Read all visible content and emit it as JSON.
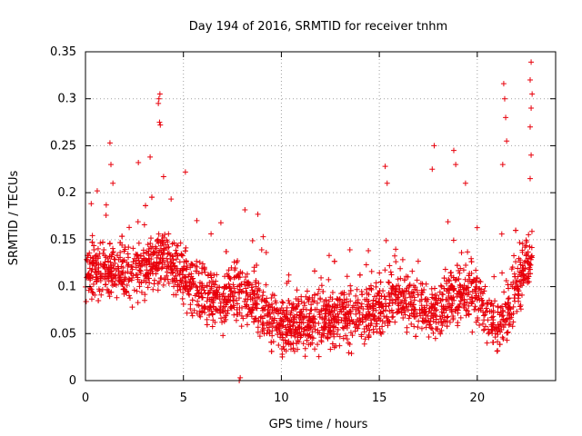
{
  "chart_data": {
    "type": "scatter",
    "title": "Day 194 of 2016, SRMTID for receiver tnhm",
    "xlabel": "GPS time / hours",
    "ylabel": "SRMTID / TECUs",
    "xlim": [
      0,
      24
    ],
    "ylim": [
      0,
      0.35
    ],
    "xticks": [
      0,
      5,
      10,
      15,
      20
    ],
    "xtick_labels": [
      "0",
      "5",
      "10",
      "15",
      "20"
    ],
    "yticks": [
      0,
      0.05,
      0.1,
      0.15,
      0.2,
      0.25,
      0.3,
      0.35
    ],
    "ytick_labels": [
      "0",
      "0.05",
      "0.1",
      "0.15",
      "0.2",
      "0.25",
      "0.3",
      "0.35"
    ],
    "grid": true,
    "marker": "+",
    "series": [
      {
        "name": "SRMTID",
        "color": "#e8000b",
        "profile": [
          [
            0.0,
            0.115
          ],
          [
            1.0,
            0.118
          ],
          [
            2.0,
            0.115
          ],
          [
            3.0,
            0.12
          ],
          [
            4.0,
            0.135
          ],
          [
            5.0,
            0.112
          ],
          [
            6.0,
            0.09
          ],
          [
            7.0,
            0.085
          ],
          [
            8.0,
            0.098
          ],
          [
            9.0,
            0.075
          ],
          [
            10.0,
            0.06
          ],
          [
            11.0,
            0.062
          ],
          [
            12.0,
            0.06
          ],
          [
            13.0,
            0.068
          ],
          [
            14.0,
            0.07
          ],
          [
            15.0,
            0.078
          ],
          [
            16.0,
            0.088
          ],
          [
            17.0,
            0.078
          ],
          [
            18.0,
            0.075
          ],
          [
            19.0,
            0.095
          ],
          [
            20.0,
            0.09
          ],
          [
            21.0,
            0.055
          ],
          [
            22.0,
            0.095
          ],
          [
            22.8,
            0.135
          ]
        ],
        "spread": 0.03,
        "point_count": 2400,
        "highlights": [
          [
            3.75,
            0.3
          ],
          [
            3.8,
            0.305
          ],
          [
            3.72,
            0.295
          ],
          [
            3.78,
            0.275
          ],
          [
            3.82,
            0.272
          ],
          [
            1.25,
            0.253
          ],
          [
            1.3,
            0.23
          ],
          [
            2.7,
            0.232
          ],
          [
            3.3,
            0.238
          ],
          [
            5.1,
            0.222
          ],
          [
            0.6,
            0.202
          ],
          [
            1.4,
            0.21
          ],
          [
            8.8,
            0.177
          ],
          [
            15.3,
            0.228
          ],
          [
            15.4,
            0.21
          ],
          [
            17.8,
            0.25
          ],
          [
            17.7,
            0.225
          ],
          [
            18.8,
            0.245
          ],
          [
            18.9,
            0.23
          ],
          [
            19.4,
            0.21
          ],
          [
            21.35,
            0.316
          ],
          [
            21.4,
            0.3
          ],
          [
            21.45,
            0.28
          ],
          [
            21.5,
            0.255
          ],
          [
            21.3,
            0.23
          ],
          [
            22.75,
            0.339
          ],
          [
            22.7,
            0.32
          ],
          [
            22.8,
            0.305
          ],
          [
            22.75,
            0.29
          ],
          [
            22.7,
            0.27
          ],
          [
            22.75,
            0.24
          ],
          [
            22.7,
            0.215
          ],
          [
            7.85,
            0.0
          ],
          [
            7.9,
            0.003
          ]
        ]
      }
    ]
  }
}
